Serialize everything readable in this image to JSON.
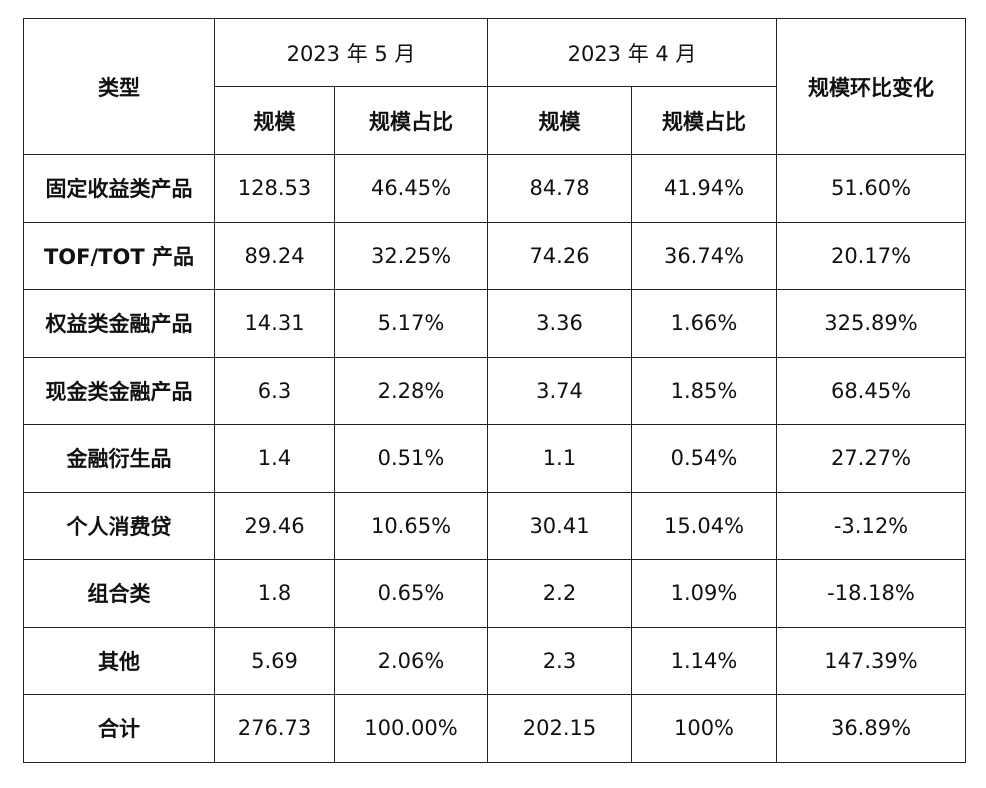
{
  "header": {
    "type_label": "类型",
    "period_may": "2023 年 5 月",
    "period_apr": "2023 年 4 月",
    "change_label": "规模环比变化",
    "scale_label": "规模",
    "share_label": "规模占比"
  },
  "rows": [
    {
      "type": "固定收益类产品",
      "may_scale": "128.53",
      "may_share": "46.45%",
      "apr_scale": "84.78",
      "apr_share": "41.94%",
      "change": "51.60%"
    },
    {
      "type": "TOF/TOT 产品",
      "may_scale": "89.24",
      "may_share": "32.25%",
      "apr_scale": "74.26",
      "apr_share": "36.74%",
      "change": "20.17%"
    },
    {
      "type": "权益类金融产品",
      "may_scale": "14.31",
      "may_share": "5.17%",
      "apr_scale": "3.36",
      "apr_share": "1.66%",
      "change": "325.89%"
    },
    {
      "type": "现金类金融产品",
      "may_scale": "6.3",
      "may_share": "2.28%",
      "apr_scale": "3.74",
      "apr_share": "1.85%",
      "change": "68.45%"
    },
    {
      "type": "金融衍生品",
      "may_scale": "1.4",
      "may_share": "0.51%",
      "apr_scale": "1.1",
      "apr_share": "0.54%",
      "change": "27.27%"
    },
    {
      "type": "个人消费贷",
      "may_scale": "29.46",
      "may_share": "10.65%",
      "apr_scale": "30.41",
      "apr_share": "15.04%",
      "change": "-3.12%"
    },
    {
      "type": "组合类",
      "may_scale": "1.8",
      "may_share": "0.65%",
      "apr_scale": "2.2",
      "apr_share": "1.09%",
      "change": "-18.18%"
    },
    {
      "type": "其他",
      "may_scale": "5.69",
      "may_share": "2.06%",
      "apr_scale": "2.3",
      "apr_share": "1.14%",
      "change": "147.39%"
    },
    {
      "type": "合计",
      "may_scale": "276.73",
      "may_share": "100.00%",
      "apr_scale": "202.15",
      "apr_share": "100%",
      "change": "36.89%"
    }
  ]
}
